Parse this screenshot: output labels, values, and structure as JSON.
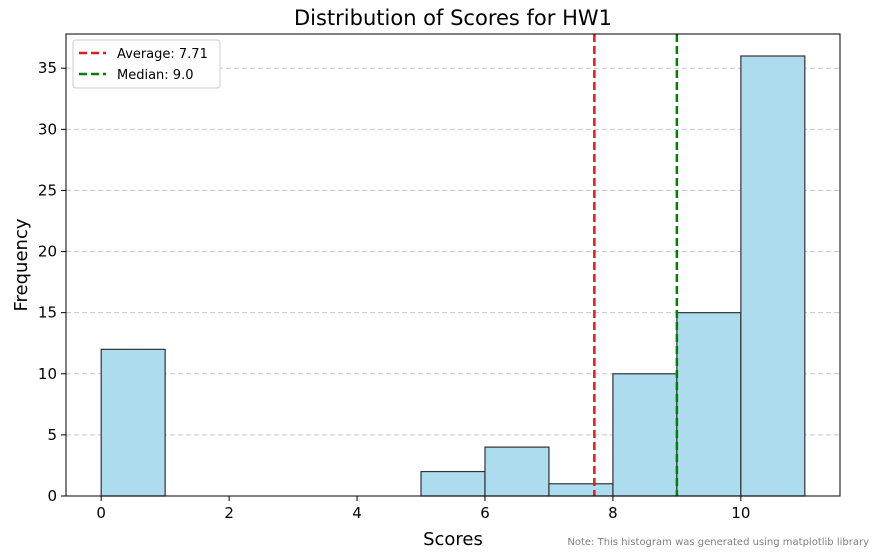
{
  "chart_data": {
    "type": "bar",
    "title": "Distribution of Scores for HW1",
    "xlabel": "Scores",
    "ylabel": "Frequency",
    "xlim": [
      -0.55,
      11.55
    ],
    "ylim": [
      0,
      37.8
    ],
    "xticks": [
      0,
      2,
      4,
      6,
      8,
      10
    ],
    "yticks": [
      0,
      5,
      10,
      15,
      20,
      25,
      30,
      35
    ],
    "bins": [
      {
        "start": 0,
        "end": 1,
        "value": 12
      },
      {
        "start": 1,
        "end": 2,
        "value": 0
      },
      {
        "start": 2,
        "end": 3,
        "value": 0
      },
      {
        "start": 3,
        "end": 4,
        "value": 0
      },
      {
        "start": 4,
        "end": 5,
        "value": 0
      },
      {
        "start": 5,
        "end": 6,
        "value": 2
      },
      {
        "start": 6,
        "end": 7,
        "value": 4
      },
      {
        "start": 7,
        "end": 8,
        "value": 1
      },
      {
        "start": 8,
        "end": 9,
        "value": 10
      },
      {
        "start": 9,
        "end": 10,
        "value": 15
      },
      {
        "start": 10,
        "end": 11,
        "value": 36
      }
    ],
    "bar_color": "#ADDCEF",
    "bar_edge_color": "#333333",
    "grid": {
      "y": true,
      "x": false
    },
    "legend": {
      "position": "top-left",
      "entries": [
        {
          "label": "Average: 7.71",
          "x": 7.71,
          "color": "#E41A1C"
        },
        {
          "label": "Median: 9.0",
          "x": 9.0,
          "color": "#008000"
        }
      ]
    },
    "note": "Note: This histogram was generated using matplotlib library"
  }
}
